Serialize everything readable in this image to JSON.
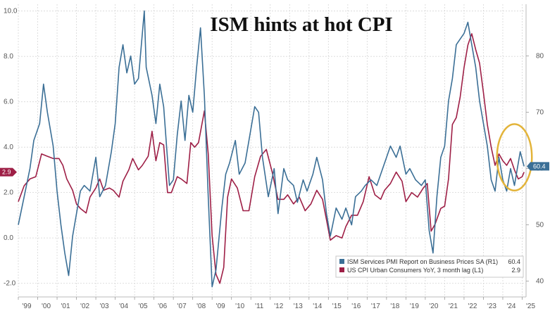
{
  "chart_data": {
    "type": "line",
    "title": "ISM hints at hot CPI",
    "x_ticks": [
      "'99",
      "'00",
      "'01",
      "'02",
      "'03",
      "'04",
      "'05",
      "'06",
      "'07",
      "'08",
      "'09",
      "'10",
      "'11",
      "'12",
      "'13",
      "'14",
      "'15",
      "'16",
      "'17",
      "'18",
      "'19",
      "'20",
      "'21",
      "'22",
      "'23",
      "'24",
      "'25"
    ],
    "x_range": [
      1999.0,
      2025.2
    ],
    "left_axis": {
      "ticks": [
        "-2.0",
        "0.0",
        "2.0",
        "4.0",
        "6.0",
        "8.0",
        "10.0"
      ],
      "range": [
        -2.6,
        10.3
      ]
    },
    "right_axis": {
      "ticks": [
        "40",
        "50",
        "60",
        "70",
        "80"
      ],
      "range": [
        37.2,
        89.2
      ]
    },
    "grid": true,
    "legend_position": "bottom-right",
    "series": [
      {
        "name": "ISM Services PMI Report on Business Prices SA (R1)",
        "legend_value": "60.4",
        "axis": "right",
        "color": "#3b6f96",
        "points": [
          [
            1999.0,
            50
          ],
          [
            1999.3,
            55
          ],
          [
            1999.6,
            60
          ],
          [
            1999.8,
            65
          ],
          [
            2000.1,
            68
          ],
          [
            2000.3,
            75
          ],
          [
            2000.5,
            70
          ],
          [
            2000.8,
            64
          ],
          [
            2001.0,
            56
          ],
          [
            2001.2,
            50
          ],
          [
            2001.4,
            45
          ],
          [
            2001.6,
            41
          ],
          [
            2001.8,
            48
          ],
          [
            2002.0,
            52
          ],
          [
            2002.2,
            56
          ],
          [
            2002.4,
            57
          ],
          [
            2002.7,
            56
          ],
          [
            2003.0,
            62
          ],
          [
            2003.2,
            55
          ],
          [
            2003.5,
            57
          ],
          [
            2003.8,
            63
          ],
          [
            2004.0,
            68
          ],
          [
            2004.2,
            78
          ],
          [
            2004.4,
            82
          ],
          [
            2004.6,
            77
          ],
          [
            2004.8,
            80
          ],
          [
            2005.0,
            75
          ],
          [
            2005.2,
            76
          ],
          [
            2005.5,
            88
          ],
          [
            2005.6,
            78
          ],
          [
            2005.9,
            73
          ],
          [
            2006.1,
            68
          ],
          [
            2006.3,
            75
          ],
          [
            2006.5,
            71
          ],
          [
            2006.8,
            57
          ],
          [
            2007.0,
            58
          ],
          [
            2007.2,
            66
          ],
          [
            2007.4,
            72
          ],
          [
            2007.6,
            65
          ],
          [
            2007.8,
            73
          ],
          [
            2008.0,
            70
          ],
          [
            2008.2,
            78
          ],
          [
            2008.4,
            85
          ],
          [
            2008.6,
            73
          ],
          [
            2008.8,
            55
          ],
          [
            2009.0,
            39
          ],
          [
            2009.2,
            42
          ],
          [
            2009.5,
            53
          ],
          [
            2009.7,
            59
          ],
          [
            2009.9,
            61
          ],
          [
            2010.2,
            65
          ],
          [
            2010.4,
            59
          ],
          [
            2010.7,
            61
          ],
          [
            2010.9,
            65
          ],
          [
            2011.2,
            71
          ],
          [
            2011.4,
            70
          ],
          [
            2011.6,
            62
          ],
          [
            2011.9,
            55
          ],
          [
            2012.2,
            60
          ],
          [
            2012.4,
            52
          ],
          [
            2012.7,
            60
          ],
          [
            2012.9,
            58
          ],
          [
            2013.2,
            57
          ],
          [
            2013.4,
            54
          ],
          [
            2013.7,
            58
          ],
          [
            2013.9,
            56
          ],
          [
            2014.2,
            59
          ],
          [
            2014.4,
            62
          ],
          [
            2014.7,
            58
          ],
          [
            2014.9,
            52
          ],
          [
            2015.1,
            48
          ],
          [
            2015.4,
            53
          ],
          [
            2015.7,
            51
          ],
          [
            2015.9,
            53
          ],
          [
            2016.2,
            50
          ],
          [
            2016.4,
            55
          ],
          [
            2016.7,
            56
          ],
          [
            2016.9,
            57
          ],
          [
            2017.2,
            58
          ],
          [
            2017.5,
            57
          ],
          [
            2017.7,
            59
          ],
          [
            2018.0,
            62
          ],
          [
            2018.2,
            64
          ],
          [
            2018.5,
            62
          ],
          [
            2018.7,
            64
          ],
          [
            2019.0,
            59
          ],
          [
            2019.2,
            60
          ],
          [
            2019.5,
            58
          ],
          [
            2019.8,
            57
          ],
          [
            2020.0,
            58
          ],
          [
            2020.2,
            49
          ],
          [
            2020.4,
            45
          ],
          [
            2020.6,
            55
          ],
          [
            2020.8,
            62
          ],
          [
            2021.0,
            64
          ],
          [
            2021.2,
            72
          ],
          [
            2021.4,
            76
          ],
          [
            2021.6,
            82
          ],
          [
            2021.8,
            83
          ],
          [
            2022.0,
            84
          ],
          [
            2022.2,
            86
          ],
          [
            2022.4,
            82
          ],
          [
            2022.6,
            78
          ],
          [
            2022.8,
            72
          ],
          [
            2023.0,
            68
          ],
          [
            2023.2,
            64
          ],
          [
            2023.4,
            58
          ],
          [
            2023.6,
            56
          ],
          [
            2023.8,
            62
          ],
          [
            2024.0,
            58
          ],
          [
            2024.2,
            56
          ],
          [
            2024.4,
            60
          ],
          [
            2024.6,
            57
          ],
          [
            2024.9,
            63
          ],
          [
            2025.1,
            60.4
          ]
        ]
      },
      {
        "name": "US CPI Urban Consumers YoY, 3 month lag (L1)",
        "legend_value": "2.9",
        "axis": "left",
        "color": "#9e1f46",
        "points": [
          [
            1999.0,
            1.6
          ],
          [
            1999.3,
            2.3
          ],
          [
            1999.6,
            2.6
          ],
          [
            1999.9,
            2.7
          ],
          [
            2000.2,
            3.7
          ],
          [
            2000.5,
            3.6
          ],
          [
            2000.8,
            3.5
          ],
          [
            2001.1,
            3.5
          ],
          [
            2001.3,
            3.2
          ],
          [
            2001.5,
            2.6
          ],
          [
            2001.8,
            2.1
          ],
          [
            2002.0,
            1.5
          ],
          [
            2002.2,
            1.3
          ],
          [
            2002.5,
            1.1
          ],
          [
            2002.7,
            1.8
          ],
          [
            2003.0,
            2.2
          ],
          [
            2003.2,
            2.6
          ],
          [
            2003.4,
            2.1
          ],
          [
            2003.7,
            2.2
          ],
          [
            2003.9,
            2.1
          ],
          [
            2004.2,
            1.8
          ],
          [
            2004.4,
            2.5
          ],
          [
            2004.7,
            3.0
          ],
          [
            2004.9,
            3.5
          ],
          [
            2005.2,
            3.0
          ],
          [
            2005.4,
            3.2
          ],
          [
            2005.7,
            3.6
          ],
          [
            2005.9,
            4.7
          ],
          [
            2006.1,
            3.4
          ],
          [
            2006.3,
            4.2
          ],
          [
            2006.5,
            4.1
          ],
          [
            2006.7,
            2.0
          ],
          [
            2006.9,
            2.0
          ],
          [
            2007.2,
            2.7
          ],
          [
            2007.4,
            2.6
          ],
          [
            2007.7,
            2.4
          ],
          [
            2007.9,
            4.2
          ],
          [
            2008.1,
            4.0
          ],
          [
            2008.3,
            4.2
          ],
          [
            2008.6,
            5.6
          ],
          [
            2008.8,
            3.7
          ],
          [
            2009.0,
            0.1
          ],
          [
            2009.2,
            -1.6
          ],
          [
            2009.4,
            -2.0
          ],
          [
            2009.6,
            -1.3
          ],
          [
            2009.8,
            1.8
          ],
          [
            2010.0,
            2.6
          ],
          [
            2010.3,
            2.2
          ],
          [
            2010.6,
            1.2
          ],
          [
            2010.9,
            1.2
          ],
          [
            2011.2,
            2.7
          ],
          [
            2011.5,
            3.6
          ],
          [
            2011.8,
            3.9
          ],
          [
            2012.1,
            2.9
          ],
          [
            2012.4,
            1.7
          ],
          [
            2012.7,
            1.7
          ],
          [
            2012.9,
            1.9
          ],
          [
            2013.2,
            1.5
          ],
          [
            2013.5,
            1.8
          ],
          [
            2013.8,
            1.2
          ],
          [
            2014.1,
            1.5
          ],
          [
            2014.4,
            2.1
          ],
          [
            2014.7,
            1.7
          ],
          [
            2014.9,
            0.8
          ],
          [
            2015.1,
            -0.1
          ],
          [
            2015.4,
            0.1
          ],
          [
            2015.7,
            0.0
          ],
          [
            2015.9,
            0.5
          ],
          [
            2016.2,
            1.0
          ],
          [
            2016.5,
            1.0
          ],
          [
            2016.8,
            1.6
          ],
          [
            2017.1,
            2.7
          ],
          [
            2017.4,
            1.9
          ],
          [
            2017.7,
            1.7
          ],
          [
            2017.9,
            2.1
          ],
          [
            2018.2,
            2.4
          ],
          [
            2018.5,
            2.9
          ],
          [
            2018.8,
            2.5
          ],
          [
            2019.0,
            1.6
          ],
          [
            2019.3,
            2.0
          ],
          [
            2019.6,
            1.8
          ],
          [
            2019.9,
            2.2
          ],
          [
            2020.1,
            2.4
          ],
          [
            2020.3,
            0.3
          ],
          [
            2020.5,
            0.6
          ],
          [
            2020.8,
            1.3
          ],
          [
            2021.0,
            1.4
          ],
          [
            2021.2,
            2.6
          ],
          [
            2021.4,
            5.0
          ],
          [
            2021.6,
            5.3
          ],
          [
            2021.8,
            6.2
          ],
          [
            2022.0,
            7.5
          ],
          [
            2022.2,
            8.5
          ],
          [
            2022.4,
            9.0
          ],
          [
            2022.6,
            8.3
          ],
          [
            2022.8,
            7.7
          ],
          [
            2023.0,
            6.4
          ],
          [
            2023.2,
            5.0
          ],
          [
            2023.4,
            4.0
          ],
          [
            2023.6,
            3.2
          ],
          [
            2023.8,
            3.7
          ],
          [
            2024.0,
            3.4
          ],
          [
            2024.2,
            3.2
          ],
          [
            2024.4,
            3.5
          ],
          [
            2024.6,
            3.0
          ],
          [
            2024.8,
            2.6
          ],
          [
            2025.0,
            2.7
          ],
          [
            2025.1,
            2.9
          ]
        ]
      }
    ],
    "badges": [
      {
        "label": "2.9",
        "axis": "left",
        "value": 2.9,
        "color": "#9e1f46"
      },
      {
        "label": "60.4",
        "axis": "right",
        "value": 60.4,
        "color": "#3b6f96"
      }
    ],
    "annotations": [
      {
        "type": "ellipse",
        "color": "#e3b43a",
        "x_center": 2024.6,
        "right_value": 62.0,
        "x_radius": 0.9,
        "right_radius": 5.9
      }
    ]
  }
}
